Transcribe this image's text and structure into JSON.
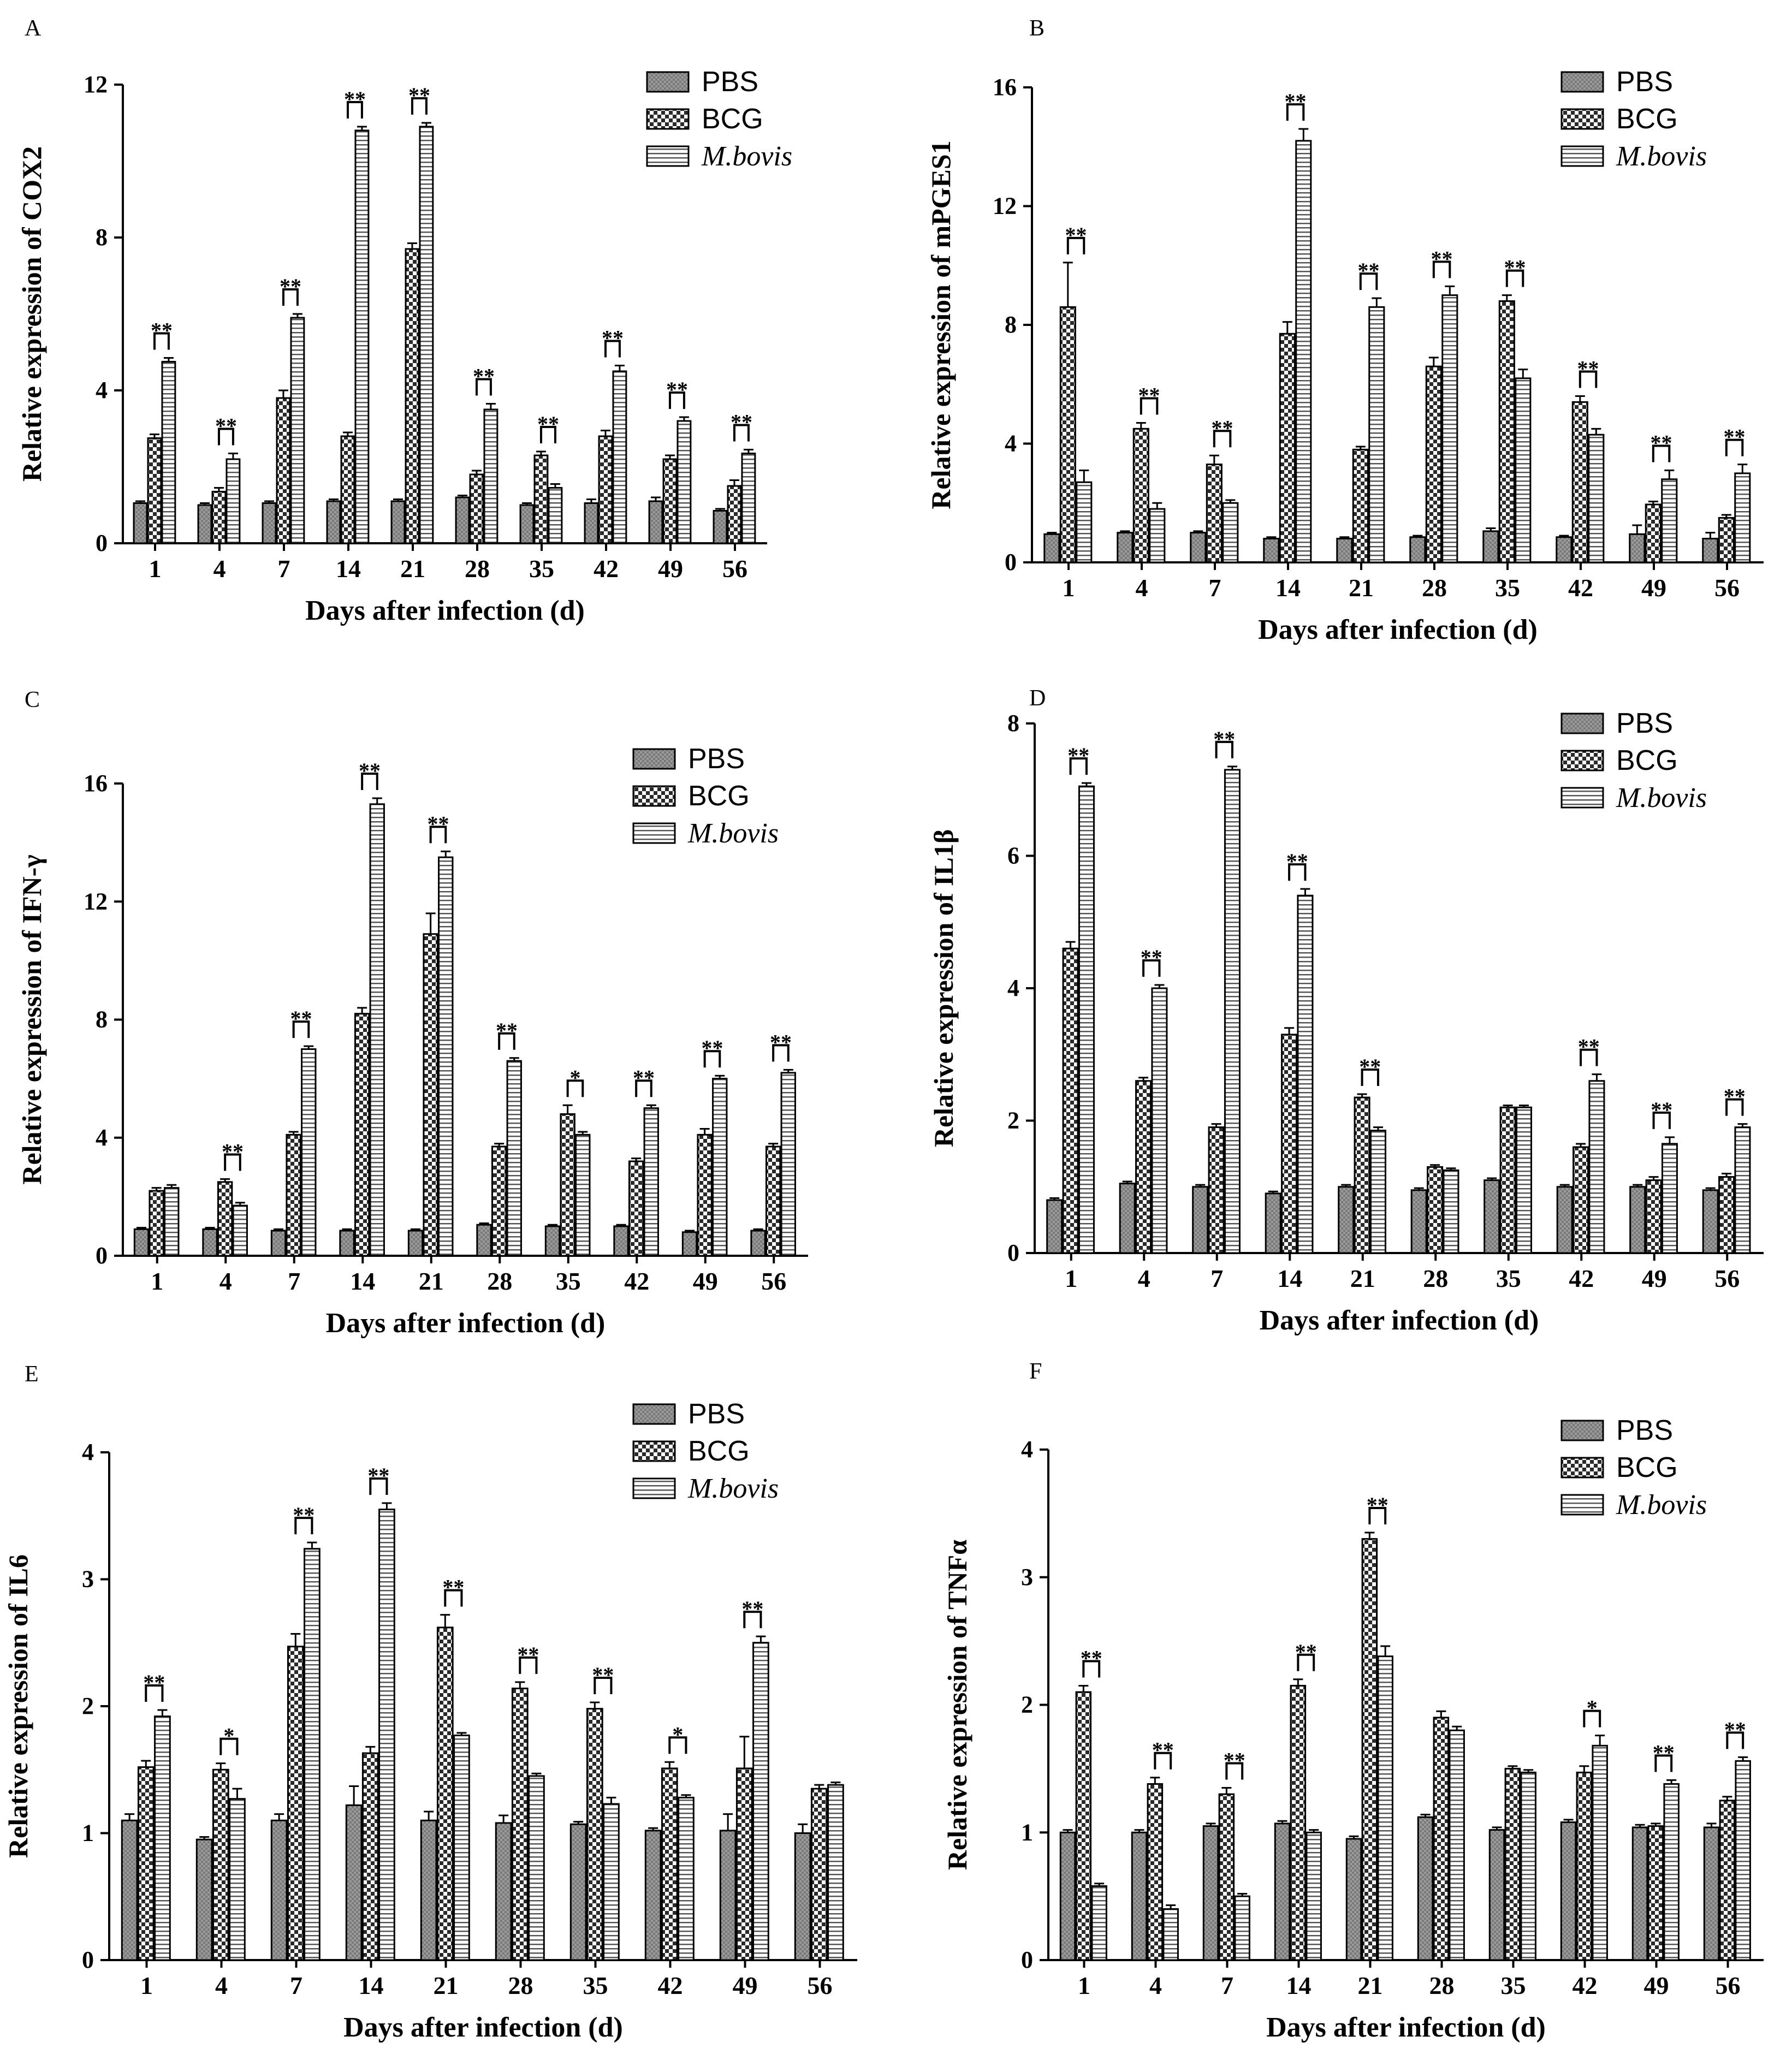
{
  "colors": {
    "PBS": "#9a9a9a",
    "BCG": "#3a3a3a",
    "M.bovis": "#ffffff",
    "axis": "#000000"
  },
  "chart_data": [
    {
      "panel": "A",
      "type": "bar",
      "ylabel": "Relative expression of COX2",
      "xlabel": "Days after infection (d)",
      "categories": [
        "1",
        "4",
        "7",
        "14",
        "21",
        "28",
        "35",
        "42",
        "49",
        "56"
      ],
      "ylim": [
        0,
        12
      ],
      "yticks": [
        0,
        4,
        8,
        12
      ],
      "series": [
        {
          "name": "PBS",
          "values": [
            1.05,
            1.0,
            1.05,
            1.1,
            1.1,
            1.2,
            1.0,
            1.05,
            1.1,
            0.85
          ],
          "errors": [
            0.05,
            0.05,
            0.05,
            0.05,
            0.05,
            0.05,
            0.05,
            0.1,
            0.1,
            0.05
          ]
        },
        {
          "name": "BCG",
          "values": [
            2.75,
            1.35,
            3.8,
            2.8,
            7.7,
            1.8,
            2.3,
            2.8,
            2.2,
            1.5
          ],
          "errors": [
            0.1,
            0.1,
            0.2,
            0.1,
            0.15,
            0.1,
            0.1,
            0.15,
            0.1,
            0.15
          ]
        },
        {
          "name": "M.bovis",
          "values": [
            4.75,
            2.2,
            5.9,
            10.8,
            10.9,
            3.5,
            1.45,
            4.5,
            3.2,
            2.35
          ],
          "errors": [
            0.1,
            0.15,
            0.1,
            0.1,
            0.1,
            0.15,
            0.1,
            0.15,
            0.1,
            0.1
          ]
        }
      ],
      "annotations": [
        {
          "category": "1",
          "text": "**"
        },
        {
          "category": "4",
          "text": "**"
        },
        {
          "category": "7",
          "text": "**"
        },
        {
          "category": "14",
          "text": "**"
        },
        {
          "category": "21",
          "text": "**"
        },
        {
          "category": "28",
          "text": "**"
        },
        {
          "category": "35",
          "text": "**"
        },
        {
          "category": "42",
          "text": "**"
        },
        {
          "category": "49",
          "text": "**"
        },
        {
          "category": "56",
          "text": "**"
        }
      ]
    },
    {
      "panel": "B",
      "type": "bar",
      "ylabel": "Relative expression of mPGES1",
      "xlabel": "Days after infection (d)",
      "categories": [
        "1",
        "4",
        "7",
        "14",
        "21",
        "28",
        "35",
        "42",
        "49",
        "56"
      ],
      "ylim": [
        0,
        16
      ],
      "yticks": [
        0,
        4,
        8,
        12,
        16
      ],
      "series": [
        {
          "name": "PBS",
          "values": [
            0.95,
            1.0,
            1.0,
            0.8,
            0.8,
            0.85,
            1.05,
            0.85,
            0.95,
            0.8
          ],
          "errors": [
            0.05,
            0.05,
            0.05,
            0.05,
            0.05,
            0.05,
            0.1,
            0.05,
            0.3,
            0.2
          ]
        },
        {
          "name": "BCG",
          "values": [
            8.6,
            4.5,
            3.3,
            7.7,
            3.8,
            6.6,
            8.8,
            5.4,
            1.95,
            1.5
          ],
          "errors": [
            1.5,
            0.2,
            0.3,
            0.4,
            0.1,
            0.3,
            0.2,
            0.2,
            0.1,
            0.1
          ]
        },
        {
          "name": "M.bovis",
          "values": [
            2.7,
            1.8,
            2.0,
            14.2,
            8.6,
            9.0,
            6.2,
            4.3,
            2.8,
            3.0
          ],
          "errors": [
            0.4,
            0.2,
            0.1,
            0.4,
            0.3,
            0.3,
            0.3,
            0.2,
            0.3,
            0.3
          ]
        }
      ],
      "annotations": [
        {
          "category": "1",
          "text": "**"
        },
        {
          "category": "4",
          "text": "**"
        },
        {
          "category": "7",
          "text": "**"
        },
        {
          "category": "14",
          "text": "**"
        },
        {
          "category": "21",
          "text": "**"
        },
        {
          "category": "28",
          "text": "**"
        },
        {
          "category": "35",
          "text": "**"
        },
        {
          "category": "42",
          "text": "**"
        },
        {
          "category": "49",
          "text": "**"
        },
        {
          "category": "56",
          "text": "**"
        }
      ]
    },
    {
      "panel": "C",
      "type": "bar",
      "ylabel": "Relative expression of IFN-γ",
      "xlabel": "Days after infection (d)",
      "categories": [
        "1",
        "4",
        "7",
        "14",
        "21",
        "28",
        "35",
        "42",
        "49",
        "56"
      ],
      "ylim": [
        0,
        16
      ],
      "yticks": [
        0,
        4,
        8,
        12,
        16
      ],
      "series": [
        {
          "name": "PBS",
          "values": [
            0.9,
            0.9,
            0.85,
            0.85,
            0.85,
            1.05,
            1.0,
            1.0,
            0.8,
            0.85
          ],
          "errors": [
            0.05,
            0.05,
            0.05,
            0.05,
            0.05,
            0.05,
            0.05,
            0.05,
            0.05,
            0.05
          ]
        },
        {
          "name": "BCG",
          "values": [
            2.2,
            2.5,
            4.1,
            8.2,
            10.9,
            3.7,
            4.8,
            3.2,
            4.1,
            3.7
          ],
          "errors": [
            0.1,
            0.1,
            0.1,
            0.2,
            0.7,
            0.1,
            0.3,
            0.1,
            0.2,
            0.1
          ]
        },
        {
          "name": "M.bovis",
          "values": [
            2.3,
            1.7,
            7.0,
            15.3,
            13.5,
            6.6,
            4.1,
            5.0,
            6.0,
            6.2
          ],
          "errors": [
            0.1,
            0.1,
            0.1,
            0.2,
            0.2,
            0.1,
            0.1,
            0.1,
            0.1,
            0.1
          ]
        }
      ],
      "annotations": [
        {
          "category": "4",
          "text": "**"
        },
        {
          "category": "7",
          "text": "**"
        },
        {
          "category": "14",
          "text": "**"
        },
        {
          "category": "21",
          "text": "**"
        },
        {
          "category": "28",
          "text": "**"
        },
        {
          "category": "35",
          "text": "*"
        },
        {
          "category": "42",
          "text": "**"
        },
        {
          "category": "49",
          "text": "**"
        },
        {
          "category": "56",
          "text": "**"
        }
      ]
    },
    {
      "panel": "D",
      "type": "bar",
      "ylabel": "Relative expression of IL1β",
      "xlabel": "Days after infection (d)",
      "categories": [
        "1",
        "4",
        "7",
        "14",
        "21",
        "28",
        "35",
        "42",
        "49",
        "56"
      ],
      "ylim": [
        0,
        8
      ],
      "yticks": [
        0,
        2,
        4,
        6,
        8
      ],
      "series": [
        {
          "name": "PBS",
          "values": [
            0.8,
            1.05,
            1.0,
            0.9,
            1.0,
            0.95,
            1.1,
            1.0,
            1.0,
            0.95
          ],
          "errors": [
            0.03,
            0.03,
            0.03,
            0.03,
            0.03,
            0.03,
            0.03,
            0.03,
            0.03,
            0.03
          ]
        },
        {
          "name": "BCG",
          "values": [
            4.6,
            2.6,
            1.9,
            3.3,
            2.35,
            1.3,
            2.2,
            1.6,
            1.1,
            1.15
          ],
          "errors": [
            0.1,
            0.05,
            0.05,
            0.1,
            0.05,
            0.03,
            0.03,
            0.05,
            0.05,
            0.05
          ]
        },
        {
          "name": "M.bovis",
          "values": [
            7.05,
            4.0,
            7.3,
            5.4,
            1.85,
            1.25,
            2.2,
            2.6,
            1.65,
            1.9
          ],
          "errors": [
            0.05,
            0.05,
            0.05,
            0.1,
            0.05,
            0.03,
            0.03,
            0.1,
            0.1,
            0.05
          ]
        }
      ],
      "annotations": [
        {
          "category": "1",
          "text": "**"
        },
        {
          "category": "4",
          "text": "**"
        },
        {
          "category": "7",
          "text": "**"
        },
        {
          "category": "14",
          "text": "**"
        },
        {
          "category": "21",
          "text": "**"
        },
        {
          "category": "42",
          "text": "**"
        },
        {
          "category": "49",
          "text": "**"
        },
        {
          "category": "56",
          "text": "**"
        }
      ]
    },
    {
      "panel": "E",
      "type": "bar",
      "ylabel": "Relative expression of IL6",
      "xlabel": "Days after infection (d)",
      "categories": [
        "1",
        "4",
        "7",
        "14",
        "21",
        "28",
        "35",
        "42",
        "49",
        "56"
      ],
      "ylim": [
        0,
        4
      ],
      "yticks": [
        0,
        1,
        2,
        3,
        4
      ],
      "series": [
        {
          "name": "PBS",
          "values": [
            1.1,
            0.95,
            1.1,
            1.22,
            1.1,
            1.08,
            1.07,
            1.02,
            1.02,
            1.0
          ],
          "errors": [
            0.05,
            0.02,
            0.05,
            0.15,
            0.07,
            0.06,
            0.02,
            0.02,
            0.13,
            0.07
          ]
        },
        {
          "name": "BCG",
          "values": [
            1.52,
            1.5,
            2.47,
            1.63,
            2.62,
            2.14,
            1.98,
            1.51,
            1.51,
            1.35
          ],
          "errors": [
            0.05,
            0.05,
            0.1,
            0.05,
            0.1,
            0.05,
            0.05,
            0.05,
            0.25,
            0.03
          ]
        },
        {
          "name": "M.bovis",
          "values": [
            1.92,
            1.27,
            3.24,
            3.55,
            1.77,
            1.45,
            1.23,
            1.28,
            2.5,
            1.38
          ],
          "errors": [
            0.05,
            0.08,
            0.05,
            0.05,
            0.02,
            0.02,
            0.05,
            0.02,
            0.05,
            0.02
          ]
        }
      ],
      "annotations": [
        {
          "category": "1",
          "text": "**"
        },
        {
          "category": "4",
          "text": "*"
        },
        {
          "category": "7",
          "text": "**"
        },
        {
          "category": "14",
          "text": "**"
        },
        {
          "category": "21",
          "text": "**"
        },
        {
          "category": "28",
          "text": "**"
        },
        {
          "category": "35",
          "text": "**"
        },
        {
          "category": "42",
          "text": "*"
        },
        {
          "category": "49",
          "text": "**"
        }
      ]
    },
    {
      "panel": "F",
      "type": "bar",
      "ylabel": "Relative expression of TNFα",
      "xlabel": "Days after infection (d)",
      "categories": [
        "1",
        "4",
        "7",
        "14",
        "21",
        "28",
        "35",
        "42",
        "49",
        "56"
      ],
      "ylim": [
        0,
        4
      ],
      "yticks": [
        0,
        1,
        2,
        3,
        4
      ],
      "series": [
        {
          "name": "PBS",
          "values": [
            1.0,
            1.0,
            1.05,
            1.07,
            0.95,
            1.12,
            1.02,
            1.08,
            1.04,
            1.04
          ],
          "errors": [
            0.02,
            0.02,
            0.02,
            0.02,
            0.02,
            0.02,
            0.02,
            0.02,
            0.02,
            0.03
          ]
        },
        {
          "name": "BCG",
          "values": [
            2.1,
            1.38,
            1.3,
            2.15,
            3.3,
            1.9,
            1.5,
            1.47,
            1.05,
            1.25
          ],
          "errors": [
            0.05,
            0.05,
            0.05,
            0.05,
            0.05,
            0.05,
            0.02,
            0.05,
            0.02,
            0.03
          ]
        },
        {
          "name": "M.bovis",
          "values": [
            0.58,
            0.4,
            0.5,
            1.0,
            2.38,
            1.8,
            1.47,
            1.68,
            1.38,
            1.56
          ],
          "errors": [
            0.02,
            0.03,
            0.02,
            0.02,
            0.08,
            0.03,
            0.02,
            0.08,
            0.03,
            0.03
          ]
        }
      ],
      "annotations": [
        {
          "category": "1",
          "text": "**"
        },
        {
          "category": "4",
          "text": "**"
        },
        {
          "category": "7",
          "text": "**"
        },
        {
          "category": "14",
          "text": "**"
        },
        {
          "category": "21",
          "text": "**"
        },
        {
          "category": "42",
          "text": "*"
        },
        {
          "category": "49",
          "text": "**"
        },
        {
          "category": "56",
          "text": "**"
        }
      ]
    }
  ]
}
